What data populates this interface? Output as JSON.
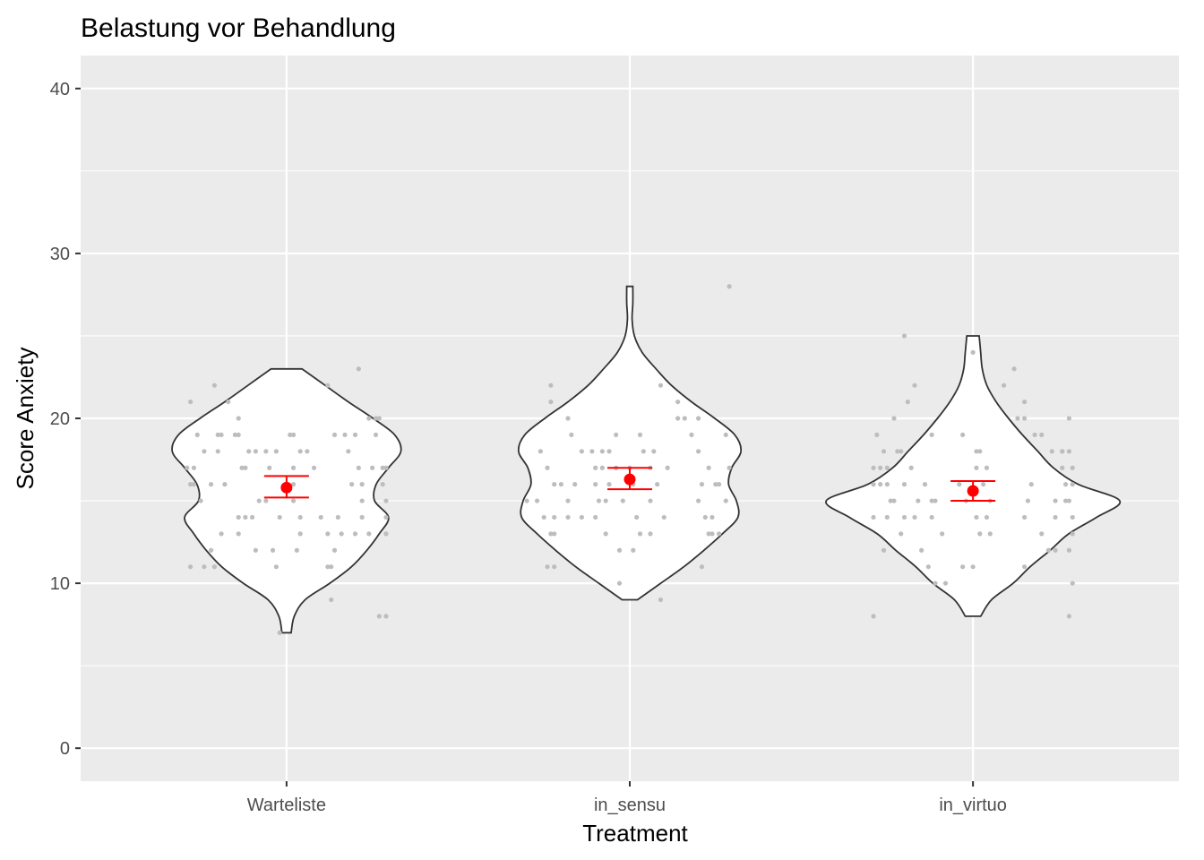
{
  "chart_data": {
    "type": "violin",
    "title": "Belastung vor Behandlung",
    "xlabel": "Treatment",
    "ylabel": "Score Anxiety",
    "categories": [
      "Warteliste",
      "in_sensu",
      "in_virtuo"
    ],
    "ylim": [
      -2,
      42
    ],
    "yticks": [
      0,
      10,
      20,
      30,
      40
    ],
    "grid": true,
    "colors": {
      "panel_background": "#ebebeb",
      "grid": "#ffffff",
      "violin_fill": "#ffffff",
      "violin_outline": "#333333",
      "points": "#bdbdbd",
      "mean_and_error": "#ff0000",
      "tick_text": "#4d4d4d"
    },
    "series": [
      {
        "category": "Warteliste",
        "mean": 15.8,
        "ci": [
          15.2,
          16.5
        ],
        "density": [
          [
            7,
            0.03
          ],
          [
            8,
            0.05
          ],
          [
            9,
            0.12
          ],
          [
            10,
            0.28
          ],
          [
            11,
            0.42
          ],
          [
            12,
            0.52
          ],
          [
            13,
            0.6
          ],
          [
            14,
            0.66
          ],
          [
            15,
            0.57
          ],
          [
            16,
            0.58
          ],
          [
            17,
            0.66
          ],
          [
            18,
            0.74
          ],
          [
            19,
            0.7
          ],
          [
            20,
            0.56
          ],
          [
            21,
            0.4
          ],
          [
            22,
            0.25
          ],
          [
            23,
            0.1
          ]
        ],
        "points": [
          [
            21,
            -0.28
          ],
          [
            22,
            -0.21
          ],
          [
            21,
            -0.17
          ],
          [
            20,
            -0.14
          ],
          [
            19,
            -0.26
          ],
          [
            19,
            -0.2
          ],
          [
            19,
            -0.19
          ],
          [
            19,
            -0.15
          ],
          [
            19,
            -0.14
          ],
          [
            18,
            -0.24
          ],
          [
            18,
            -0.2
          ],
          [
            18,
            -0.11
          ],
          [
            18,
            -0.09
          ],
          [
            18,
            -0.06
          ],
          [
            18,
            -0.03
          ],
          [
            17,
            -0.29
          ],
          [
            17,
            -0.27
          ],
          [
            17,
            -0.13
          ],
          [
            17,
            -0.12
          ],
          [
            17,
            -0.05
          ],
          [
            16,
            -0.28
          ],
          [
            16,
            -0.27
          ],
          [
            16,
            -0.22
          ],
          [
            16,
            -0.18
          ],
          [
            15,
            -0.25
          ],
          [
            15,
            -0.08
          ],
          [
            15,
            -0.06
          ],
          [
            14,
            -0.14
          ],
          [
            14,
            -0.12
          ],
          [
            14,
            -0.1
          ],
          [
            14,
            -0.02
          ],
          [
            13,
            -0.19
          ],
          [
            13,
            -0.14
          ],
          [
            12,
            -0.22
          ],
          [
            12,
            -0.09
          ],
          [
            12,
            -0.04
          ],
          [
            11,
            -0.28
          ],
          [
            11,
            -0.24
          ],
          [
            11,
            -0.21
          ],
          [
            11,
            -0.03
          ],
          [
            7,
            -0.02
          ],
          [
            19,
            0.01
          ],
          [
            19,
            0.02
          ],
          [
            18,
            0.04
          ],
          [
            18,
            0.06
          ],
          [
            17,
            0.02
          ],
          [
            17,
            0.08
          ],
          [
            16,
            0.02
          ],
          [
            15,
            0.02
          ],
          [
            14,
            0.04
          ],
          [
            14,
            0.1
          ],
          [
            13,
            0.04
          ],
          [
            13,
            0.12
          ],
          [
            13,
            0.16
          ],
          [
            12,
            0.03
          ],
          [
            11,
            0.12
          ],
          [
            22,
            0.12
          ],
          [
            19,
            0.14
          ],
          [
            19,
            0.17
          ],
          [
            19,
            0.2
          ],
          [
            18,
            0.18
          ],
          [
            17,
            0.21
          ],
          [
            17,
            0.25
          ],
          [
            16,
            0.19
          ],
          [
            16,
            0.22
          ],
          [
            15,
            0.22
          ],
          [
            14,
            0.15
          ],
          [
            14,
            0.22
          ],
          [
            13,
            0.2
          ],
          [
            13,
            0.24
          ],
          [
            12,
            0.14
          ],
          [
            11,
            0.13
          ],
          [
            9,
            0.13
          ],
          [
            23,
            0.21
          ],
          [
            20,
            0.24
          ],
          [
            20,
            0.26
          ],
          [
            20,
            0.27
          ],
          [
            19,
            0.26
          ],
          [
            17,
            0.28
          ],
          [
            17,
            0.29
          ],
          [
            16,
            0.28
          ],
          [
            15,
            0.29
          ],
          [
            14,
            0.29
          ],
          [
            13,
            0.29
          ],
          [
            8,
            0.27
          ],
          [
            8,
            0.29
          ]
        ]
      },
      {
        "category": "in_sensu",
        "mean": 16.3,
        "ci": [
          15.7,
          17.0
        ],
        "density": [
          [
            9,
            0.05
          ],
          [
            10,
            0.2
          ],
          [
            11,
            0.35
          ],
          [
            12,
            0.48
          ],
          [
            13,
            0.6
          ],
          [
            14,
            0.7
          ],
          [
            15,
            0.69
          ],
          [
            16,
            0.64
          ],
          [
            17,
            0.66
          ],
          [
            18,
            0.72
          ],
          [
            19,
            0.68
          ],
          [
            20,
            0.55
          ],
          [
            21,
            0.4
          ],
          [
            22,
            0.27
          ],
          [
            23,
            0.17
          ],
          [
            24,
            0.08
          ],
          [
            25,
            0.03
          ],
          [
            26,
            0.015
          ],
          [
            27,
            0.02
          ],
          [
            28,
            0.02
          ]
        ],
        "points": [
          [
            22,
            -0.23
          ],
          [
            21,
            -0.23
          ],
          [
            20,
            -0.18
          ],
          [
            19,
            -0.17
          ],
          [
            18,
            -0.26
          ],
          [
            18,
            -0.14
          ],
          [
            18,
            -0.11
          ],
          [
            18,
            -0.08
          ],
          [
            18,
            -0.06
          ],
          [
            17,
            -0.24
          ],
          [
            17,
            -0.1
          ],
          [
            17,
            -0.08
          ],
          [
            17,
            -0.04
          ],
          [
            16,
            -0.22
          ],
          [
            16,
            -0.2
          ],
          [
            16,
            -0.16
          ],
          [
            16,
            -0.1
          ],
          [
            16,
            -0.06
          ],
          [
            15,
            -0.3
          ],
          [
            15,
            -0.27
          ],
          [
            15,
            -0.18
          ],
          [
            15,
            -0.09
          ],
          [
            15,
            -0.07
          ],
          [
            14,
            -0.25
          ],
          [
            14,
            -0.22
          ],
          [
            14,
            -0.18
          ],
          [
            14,
            -0.14
          ],
          [
            14,
            -0.1
          ],
          [
            13,
            -0.23
          ],
          [
            13,
            -0.22
          ],
          [
            13,
            -0.07
          ],
          [
            12,
            -0.03
          ],
          [
            11,
            -0.24
          ],
          [
            11,
            -0.22
          ],
          [
            10,
            -0.03
          ],
          [
            19,
            -0.04
          ],
          [
            17,
            0.0
          ],
          [
            16,
            0.01
          ],
          [
            15,
            -0.02
          ],
          [
            14,
            0.02
          ],
          [
            13,
            0.03
          ],
          [
            12,
            0.01
          ],
          [
            19,
            0.03
          ],
          [
            18,
            0.04
          ],
          [
            18,
            0.07
          ],
          [
            17,
            0.06
          ],
          [
            17,
            0.11
          ],
          [
            16,
            0.08
          ],
          [
            15,
            0.06
          ],
          [
            14,
            0.1
          ],
          [
            13,
            0.06
          ],
          [
            22,
            0.09
          ],
          [
            21,
            0.14
          ],
          [
            20,
            0.14
          ],
          [
            20,
            0.16
          ],
          [
            19,
            0.18
          ],
          [
            18,
            0.2
          ],
          [
            17,
            0.23
          ],
          [
            16,
            0.25
          ],
          [
            16,
            0.26
          ],
          [
            15,
            0.2
          ],
          [
            14,
            0.24
          ],
          [
            13,
            0.23
          ],
          [
            11,
            0.21
          ],
          [
            9,
            0.09
          ],
          [
            20,
            0.2
          ],
          [
            19,
            0.28
          ],
          [
            17,
            0.29
          ],
          [
            16,
            0.21
          ],
          [
            15,
            0.28
          ],
          [
            14,
            0.22
          ],
          [
            13,
            0.26
          ],
          [
            13,
            0.24
          ],
          [
            28,
            0.29
          ]
        ]
      },
      {
        "category": "in_virtuo",
        "mean": 15.6,
        "ci": [
          15.0,
          16.2
        ],
        "density": [
          [
            8,
            0.05
          ],
          [
            9,
            0.12
          ],
          [
            10,
            0.26
          ],
          [
            11,
            0.37
          ],
          [
            12,
            0.5
          ],
          [
            13,
            0.62
          ],
          [
            14,
            0.8
          ],
          [
            15,
            0.95
          ],
          [
            16,
            0.68
          ],
          [
            17,
            0.52
          ],
          [
            18,
            0.42
          ],
          [
            19,
            0.32
          ],
          [
            20,
            0.23
          ],
          [
            21,
            0.15
          ],
          [
            22,
            0.09
          ],
          [
            23,
            0.06
          ],
          [
            24,
            0.05
          ],
          [
            25,
            0.04
          ]
        ],
        "points": [
          [
            25,
            -0.2
          ],
          [
            22,
            -0.17
          ],
          [
            21,
            -0.19
          ],
          [
            20,
            -0.23
          ],
          [
            19,
            -0.28
          ],
          [
            19,
            -0.12
          ],
          [
            18,
            -0.26
          ],
          [
            18,
            -0.22
          ],
          [
            18,
            -0.21
          ],
          [
            17,
            -0.29
          ],
          [
            17,
            -0.27
          ],
          [
            17,
            -0.25
          ],
          [
            17,
            -0.18
          ],
          [
            16,
            -0.29
          ],
          [
            16,
            -0.27
          ],
          [
            16,
            -0.25
          ],
          [
            16,
            -0.2
          ],
          [
            16,
            -0.14
          ],
          [
            15,
            -0.24
          ],
          [
            15,
            -0.23
          ],
          [
            15,
            -0.16
          ],
          [
            15,
            -0.12
          ],
          [
            15,
            -0.11
          ],
          [
            14,
            -0.29
          ],
          [
            14,
            -0.25
          ],
          [
            14,
            -0.2
          ],
          [
            14,
            -0.17
          ],
          [
            14,
            -0.12
          ],
          [
            13,
            -0.21
          ],
          [
            13,
            -0.09
          ],
          [
            12,
            -0.26
          ],
          [
            12,
            -0.15
          ],
          [
            11,
            -0.13
          ],
          [
            10,
            -0.11
          ],
          [
            10,
            -0.08
          ],
          [
            8,
            -0.29
          ],
          [
            19,
            -0.03
          ],
          [
            18,
            0.01
          ],
          [
            17,
            0.01
          ],
          [
            16,
            -0.04
          ],
          [
            15,
            -0.02
          ],
          [
            14,
            0.01
          ],
          [
            13,
            0.02
          ],
          [
            11,
            -0.03
          ],
          [
            11,
            0.0
          ],
          [
            24,
            0.0
          ],
          [
            18,
            0.02
          ],
          [
            17,
            0.04
          ],
          [
            16,
            0.03
          ],
          [
            15,
            0.05
          ],
          [
            14,
            0.04
          ],
          [
            13,
            0.05
          ],
          [
            22,
            0.09
          ],
          [
            21,
            0.15
          ],
          [
            20,
            0.13
          ],
          [
            20,
            0.15
          ],
          [
            19,
            0.18
          ],
          [
            19,
            0.2
          ],
          [
            18,
            0.23
          ],
          [
            18,
            0.26
          ],
          [
            18,
            0.28
          ],
          [
            17,
            0.26
          ],
          [
            17,
            0.29
          ],
          [
            16,
            0.17
          ],
          [
            16,
            0.27
          ],
          [
            16,
            0.29
          ],
          [
            15,
            0.16
          ],
          [
            15,
            0.24
          ],
          [
            15,
            0.27
          ],
          [
            14,
            0.15
          ],
          [
            14,
            0.24
          ],
          [
            13,
            0.2
          ],
          [
            12,
            0.22
          ],
          [
            12,
            0.24
          ],
          [
            11,
            0.15
          ],
          [
            23,
            0.12
          ],
          [
            20,
            0.28
          ],
          [
            18,
            0.26
          ],
          [
            15,
            0.28
          ],
          [
            14,
            0.29
          ],
          [
            13,
            0.29
          ],
          [
            12,
            0.28
          ],
          [
            10,
            0.29
          ],
          [
            8,
            0.28
          ]
        ]
      }
    ]
  }
}
